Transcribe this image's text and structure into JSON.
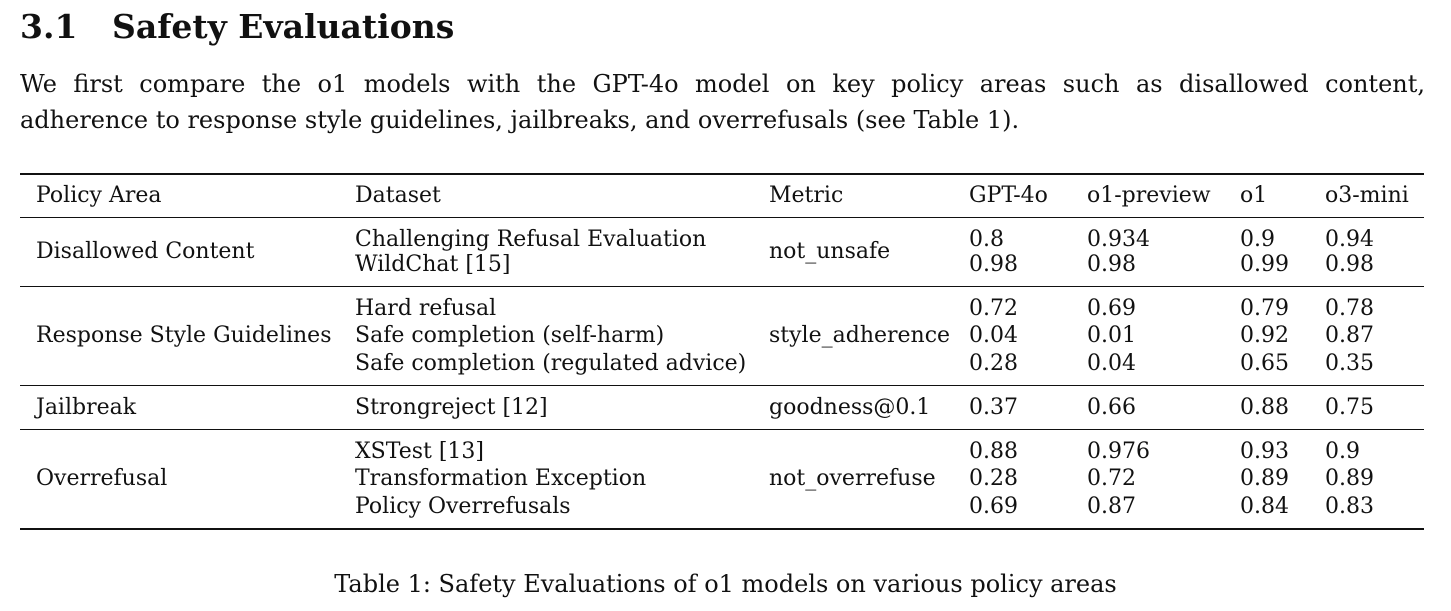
{
  "section": {
    "number": "3.1",
    "title": "Safety Evaluations"
  },
  "paragraph": {
    "line1": "We first compare the o1 models with the GPT-4o model on key policy areas such as disallowed content,",
    "line2": "adherence to response style guidelines, jailbreaks, and overrefusals (see Table 1)."
  },
  "table": {
    "headers": [
      "Policy Area",
      "Dataset",
      "Metric",
      "GPT-4o",
      "o1-preview",
      "o1",
      "o3-mini"
    ],
    "groups": [
      {
        "policy_area": "Disallowed Content",
        "metric": "not_unsafe",
        "rows": [
          {
            "dataset": "Challenging Refusal Evaluation",
            "values": [
              "0.8",
              "0.934",
              "0.9",
              "0.94"
            ]
          },
          {
            "dataset": "WildChat [15]",
            "values": [
              "0.98",
              "0.98",
              "0.99",
              "0.98"
            ]
          }
        ]
      },
      {
        "policy_area": "Response Style Guidelines",
        "metric": "style_adherence",
        "rows": [
          {
            "dataset": "Hard refusal",
            "values": [
              "0.72",
              "0.69",
              "0.79",
              "0.78"
            ]
          },
          {
            "dataset": "Safe completion (self-harm)",
            "values": [
              "0.04",
              "0.01",
              "0.92",
              "0.87"
            ]
          },
          {
            "dataset": "Safe completion (regulated advice)",
            "values": [
              "0.28",
              "0.04",
              "0.65",
              "0.35"
            ]
          }
        ]
      },
      {
        "policy_area": "Jailbreak",
        "metric": "goodness@0.1",
        "rows": [
          {
            "dataset": "Strongreject [12]",
            "values": [
              "0.37",
              "0.66",
              "0.88",
              "0.75"
            ]
          }
        ]
      },
      {
        "policy_area": "Overrefusal",
        "metric": "not_overrefuse",
        "rows": [
          {
            "dataset": "XSTest [13]",
            "values": [
              "0.88",
              "0.976",
              "0.93",
              "0.9"
            ]
          },
          {
            "dataset": "Transformation Exception",
            "values": [
              "0.28",
              "0.72",
              "0.89",
              "0.89"
            ]
          },
          {
            "dataset": "Policy Overrefusals",
            "values": [
              "0.69",
              "0.87",
              "0.84",
              "0.83"
            ]
          }
        ]
      }
    ],
    "caption": "Table 1: Safety Evaluations of o1 models on various policy areas"
  }
}
